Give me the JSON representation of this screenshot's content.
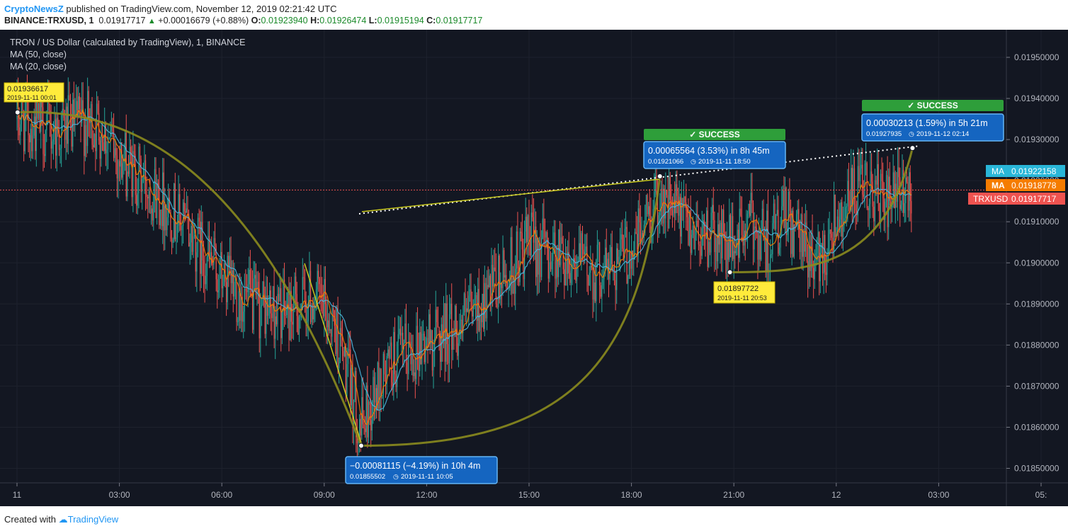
{
  "header": {
    "publisher": "CryptoNewsZ",
    "published_text": "published on TradingView.com, November 12, 2019 02:21:42 UTC",
    "symbol": "BINANCE:TRXUSD, 1",
    "last": "0.01917717",
    "change": "+0.00016679 (+0.88%)",
    "open_label": "O:",
    "open": "0.01923940",
    "high_label": "H:",
    "high": "0.01926474",
    "low_label": "L:",
    "low": "0.01915194",
    "close_label": "C:",
    "close": "0.01917717"
  },
  "legend": {
    "title": "TRON / US Dollar (calculated by TradingView), 1, BINANCE",
    "ma1": "MA (50, close)",
    "ma2": "MA (20, close)"
  },
  "price_tags": {
    "ma1_label": "MA",
    "ma1_value": "0.01922158",
    "ma2_label": "MA",
    "ma2_value": "0.01918778",
    "sym_label": "TRXUSD",
    "sym_value": "0.01917717"
  },
  "annotations": {
    "start_price": "0.01936617",
    "start_time": "2019-11-11 00:01",
    "low_price": "0.01897722",
    "low_time": "2019-11-11 20:53",
    "drop_main": "−0.00081115 (−4.19%) in 10h 4m",
    "drop_sub_price": "0.01855502",
    "drop_sub_time": "2019-11-11  10:05",
    "rise1_main": "0.00065564 (3.53%) in 8h 45m",
    "rise1_sub_price": "0.01921066",
    "rise1_sub_time": "2019-11-11  18:50",
    "rise2_main": "0.00030213 (1.59%) in 5h 21m",
    "rise2_sub_price": "0.01927935",
    "rise2_sub_time": "2019-11-12  02:14",
    "success_label": "✓ SUCCESS"
  },
  "footer": {
    "created": "Created with",
    "brand": "TradingView"
  },
  "colors": {
    "background": "#131722",
    "up": "#26a69a",
    "down": "#ef5350",
    "ma50": "#4db6e0",
    "ma20": "#f57c00",
    "success": "#2e9e3a",
    "badge_blue": "#1565c0",
    "badge_yellow": "#ffeb3b",
    "curve": "#8b8b1e"
  },
  "chart_data": {
    "type": "candlestick",
    "title": "TRON / US Dollar (calculated by TradingView), 1, BINANCE",
    "x_ticks": [
      "11",
      "03:00",
      "06:00",
      "09:00",
      "12:00",
      "15:00",
      "18:00",
      "21:00",
      "12",
      "03:00",
      "05:"
    ],
    "y_ticks": [
      "0.01950000",
      "0.01940000",
      "0.01930000",
      "0.01920000",
      "0.01910000",
      "0.01900000",
      "0.01890000",
      "0.01880000",
      "0.01870000",
      "0.01860000",
      "0.01850000"
    ],
    "ylim": [
      0.01845,
      0.01955
    ],
    "series_path_hours": [
      0,
      1,
      2,
      2.5,
      3,
      4,
      5,
      6,
      7,
      8,
      8.7,
      9.3,
      9.7,
      10.08,
      10.5,
      11,
      12,
      13,
      14,
      15,
      16,
      17,
      18,
      18.83,
      19.5,
      20,
      20.88,
      21.5,
      22,
      22.5,
      23,
      23.5,
      24,
      24.5,
      25,
      25.5,
      26.23
    ],
    "series_path_prices": [
      0.01935,
      0.01932,
      0.01934,
      0.01933,
      0.01925,
      0.01918,
      0.01908,
      0.01896,
      0.01889,
      0.01888,
      0.01892,
      0.01885,
      0.01872,
      0.0186,
      0.01868,
      0.01876,
      0.01881,
      0.01885,
      0.01893,
      0.01905,
      0.01902,
      0.01898,
      0.01903,
      0.01917,
      0.0191,
      0.01908,
      0.01904,
      0.0191,
      0.01905,
      0.01911,
      0.01904,
      0.019,
      0.01912,
      0.01916,
      0.01918,
      0.01914,
      0.01918
    ],
    "moving_averages": [
      {
        "name": "MA (50, close)",
        "current": 0.01922158
      },
      {
        "name": "MA (20, close)",
        "current": 0.01918778
      }
    ],
    "last_price": 0.01917717,
    "marked_points": [
      {
        "time": "2019-11-11 00:01",
        "price": 0.01936617
      },
      {
        "time": "2019-11-11 10:05",
        "price": 0.01855502
      },
      {
        "time": "2019-11-11 18:50",
        "price": 0.01921066
      },
      {
        "time": "2019-11-11 20:53",
        "price": 0.01897722
      },
      {
        "time": "2019-11-12 02:14",
        "price": 0.01927935
      }
    ]
  }
}
